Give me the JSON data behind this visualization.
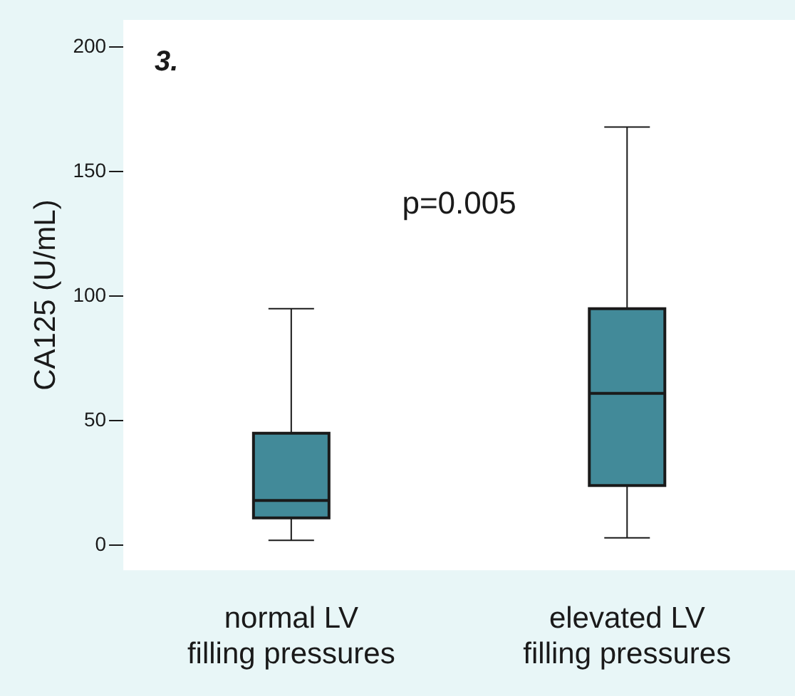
{
  "chart_data": {
    "type": "box",
    "title": "3.",
    "ylabel": "CA125 (U/mL)",
    "categories": [
      "normal LV\nfilling pressures",
      "elevated LV\nfilling pressures"
    ],
    "series": [
      {
        "color": "#428a99",
        "boxes": [
          {
            "low": 2,
            "q1": 11,
            "median": 18,
            "q3": 45,
            "high": 95
          },
          {
            "low": 3,
            "q1": 24,
            "median": 61,
            "q3": 95,
            "high": 168
          }
        ]
      }
    ],
    "ylim": [
      -10,
      211
    ],
    "yticks": [
      0,
      50,
      100,
      150,
      200
    ],
    "annotations": [
      "p=0.005"
    ]
  }
}
